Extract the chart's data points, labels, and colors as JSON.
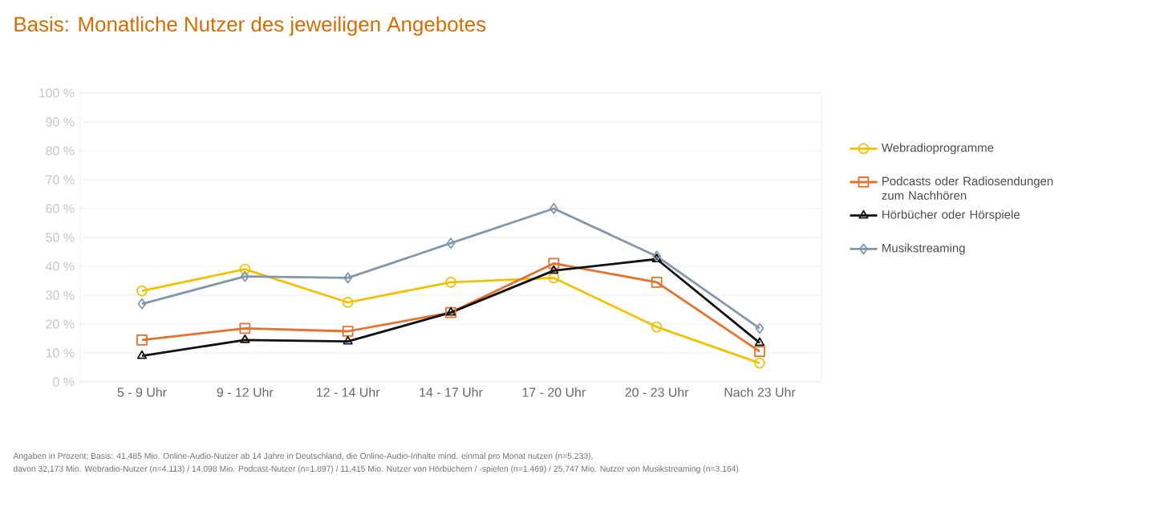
{
  "chart_data": {
    "type": "line",
    "title": "Basis: Monatliche Nutzer des jeweiligen Angebotes",
    "categories": [
      "5 - 9 Uhr",
      "9 - 12 Uhr",
      "12 - 14 Uhr",
      "14 - 17 Uhr",
      "17 - 20 Uhr",
      "20 - 23 Uhr",
      "Nach 23 Uhr"
    ],
    "series": [
      {
        "name": "Webradioprogramme",
        "color": "#f2c200",
        "marker": "circle",
        "values": [
          31.5,
          39,
          27.5,
          34.5,
          36,
          19,
          6.5
        ]
      },
      {
        "name": "Podcasts oder Radiosendungen zum Nachhören",
        "color": "#e8702a",
        "marker": "square",
        "values": [
          14.5,
          18.5,
          17.5,
          24,
          41,
          34.5,
          10.5
        ]
      },
      {
        "name": "Hörbücher oder Hörspiele",
        "color": "#111111",
        "marker": "triangle",
        "values": [
          9,
          14.5,
          14,
          24,
          38.5,
          42.5,
          13.5
        ]
      },
      {
        "name": "Musikstreaming",
        "color": "#8496a9",
        "marker": "diamond",
        "values": [
          27,
          36.5,
          36,
          48,
          60,
          43.5,
          18.5
        ]
      }
    ],
    "ylim": [
      0,
      100
    ],
    "yticks": [
      {
        "value": 0,
        "label": "0 %"
      },
      {
        "value": 10,
        "label": "10 %"
      },
      {
        "value": 20,
        "label": "20 %"
      },
      {
        "value": 30,
        "label": "30 %"
      },
      {
        "value": 40,
        "label": "40 %"
      },
      {
        "value": 50,
        "label": "50 %"
      },
      {
        "value": 60,
        "label": "60 %"
      },
      {
        "value": 70,
        "label": "70 %"
      },
      {
        "value": 80,
        "label": "80 %"
      },
      {
        "value": 90,
        "label": "90 %"
      },
      {
        "value": 100,
        "label": "100 %"
      }
    ],
    "grid": "y",
    "legend": "right",
    "line_style": "solid",
    "annotations": [
      "Angaben in Prozent; Basis: 41,485 Mio. Online-Audio-Nutzer ab 14 Jahre in Deutschland, die Online-Audio-Inhalte mind. einmal pro Monat nutzen (n=5.233),",
      "davon 32,173 Mio. Webradio-Nutzer (n=4.113) / 14,098 Mio. Podcast-Nutzer (n=1.897) / 11,415 Mio. Nutzer von Hörbüchern / -spielen (n=1.469) / 25,747 Mio. Nutzer von Musikstreaming (n=3.164)"
    ]
  }
}
